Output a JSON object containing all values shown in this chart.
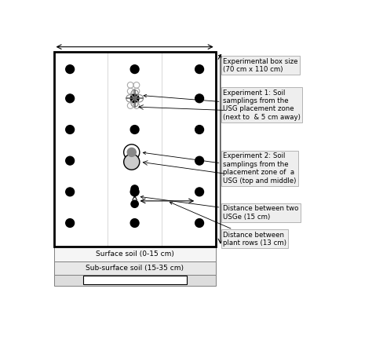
{
  "fig_width": 4.74,
  "fig_height": 4.33,
  "dpi": 100,
  "bg_color": "white",
  "annotations": {
    "exp_box_size": "Experimental box size\n(70 cm x 110 cm)",
    "exp1": "Experiment 1: Soil\nsamplings from the\nUSG placement zone\n(next to  & 5 cm away)",
    "exp2": "Experiment 2: Soil\nsamplings from the\nplacement zone of  a\nUSG (top and middle)",
    "dist_usg": "Distance between two\nUSGe (15 cm)",
    "dist_plant": "Distance between\nplant rows (13 cm)"
  }
}
